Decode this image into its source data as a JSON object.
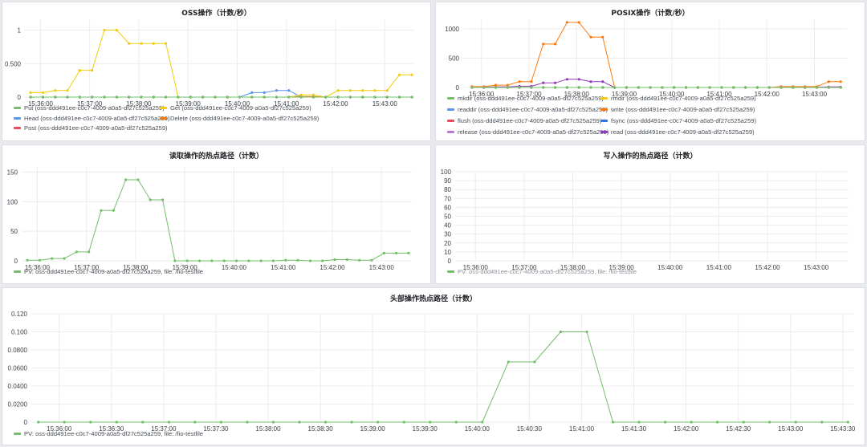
{
  "colors": {
    "green": "#73bf69",
    "yellow": "#f2cc0c",
    "blue": "#5794f2",
    "orange": "#ff780a",
    "red": "#f2495c",
    "purple": "#b877d9",
    "darkblue": "#3274d9",
    "violet": "#8f3bb8"
  },
  "panels": {
    "oss": {
      "title": "OSS操作（计数/秒）",
      "chart_data": {
        "type": "line",
        "x": [
          "15:35:48",
          "15:36:03",
          "15:36:18",
          "15:36:33",
          "15:36:48",
          "15:37:03",
          "15:37:18",
          "15:37:33",
          "15:37:48",
          "15:38:03",
          "15:38:18",
          "15:38:33",
          "15:38:48",
          "15:39:03",
          "15:39:18",
          "15:39:33",
          "15:39:48",
          "15:40:03",
          "15:40:18",
          "15:40:33",
          "15:40:48",
          "15:41:03",
          "15:41:18",
          "15:41:33",
          "15:41:48",
          "15:42:03",
          "15:42:18",
          "15:42:33",
          "15:42:48",
          "15:43:03",
          "15:43:18",
          "15:43:33"
        ],
        "xticks": [
          "15:36:00",
          "15:37:00",
          "15:38:00",
          "15:39:00",
          "15:40:00",
          "15:41:00",
          "15:42:00",
          "15:43:00"
        ],
        "yticks": [
          "0",
          "0.500",
          "1"
        ],
        "ylim": [
          0,
          1.15
        ],
        "series": [
          {
            "name": "Put (oss-ddd491ee-c0c7-4009-a0a5-df27c525a259)",
            "color": "green",
            "values": [
              0,
              0,
              0,
              0,
              0,
              0,
              0,
              0,
              0,
              0,
              0,
              0,
              0,
              0,
              0,
              0,
              0,
              0,
              0,
              0,
              0,
              0,
              0,
              0,
              0,
              0,
              0,
              0,
              0,
              0,
              0,
              0
            ]
          },
          {
            "name": "Get (oss-ddd491ee-c0c7-4009-a0a5-df27c525a259)",
            "color": "yellow",
            "values": [
              0.067,
              0.067,
              0.1,
              0.1,
              0.4,
              0.4,
              1,
              1,
              0.8,
              0.8,
              0.8,
              0.8,
              0,
              0,
              0,
              0,
              0,
              0,
              0,
              0,
              0,
              0,
              0.033,
              0.033,
              0,
              0.1,
              0.1,
              0.1,
              0.1,
              0.1,
              0.333,
              0.333
            ]
          },
          {
            "name": "Head (oss-ddd491ee-c0c7-4009-a0a5-df27c525a259)",
            "color": "blue",
            "values": [
              0,
              0,
              0,
              0,
              0,
              0,
              0,
              0,
              0,
              0,
              0,
              0,
              0,
              0,
              0,
              0,
              0,
              0,
              0.067,
              0.067,
              0.1,
              0.1,
              0,
              0,
              0,
              0,
              0,
              0,
              0,
              0,
              0,
              0
            ]
          },
          {
            "name": "Delete (oss-ddd491ee-c0c7-4009-a0a5-df27c525a259)",
            "color": "orange",
            "values": [
              0,
              0,
              0,
              0,
              0,
              0,
              0,
              0,
              0,
              0,
              0,
              0,
              0,
              0,
              0,
              0,
              0,
              0,
              0,
              0,
              0,
              0,
              0.01,
              0.01,
              0,
              0,
              0,
              0,
              0,
              0,
              0,
              0
            ]
          },
          {
            "name": "Post (oss-ddd491ee-c0c7-4009-a0a5-df27c525a259)",
            "color": "red",
            "values": [
              0,
              0,
              0,
              0,
              0,
              0,
              0,
              0,
              0,
              0,
              0,
              0,
              0,
              0,
              0,
              0,
              0,
              0,
              0,
              0,
              0,
              0,
              0,
              0,
              0,
              0,
              0,
              0,
              0,
              0,
              0,
              0
            ]
          }
        ],
        "legend": "bottom"
      }
    },
    "posix": {
      "title": "POSIX操作（计数/秒）",
      "chart_data": {
        "type": "line",
        "x": [
          "15:35:48",
          "15:36:03",
          "15:36:18",
          "15:36:33",
          "15:36:48",
          "15:37:03",
          "15:37:18",
          "15:37:33",
          "15:37:48",
          "15:38:03",
          "15:38:18",
          "15:38:33",
          "15:38:48",
          "15:39:03",
          "15:39:18",
          "15:39:33",
          "15:39:48",
          "15:40:03",
          "15:40:18",
          "15:40:33",
          "15:40:48",
          "15:41:03",
          "15:41:18",
          "15:41:33",
          "15:41:48",
          "15:42:03",
          "15:42:18",
          "15:42:33",
          "15:42:48",
          "15:43:03",
          "15:43:18",
          "15:43:33"
        ],
        "xticks": [
          "15:36:00",
          "15:37:00",
          "15:38:00",
          "15:39:00",
          "15:40:00",
          "15:41:00",
          "15:42:00",
          "15:43:00"
        ],
        "yticks": [
          "0",
          "500",
          "1000"
        ],
        "ylim": [
          0,
          1150
        ],
        "series": [
          {
            "name": "mkdir (oss-ddd491ee-c0c7-4009-a0a5-df27c525a259)",
            "color": "green",
            "values": [
              0,
              0,
              0,
              0,
              0,
              0,
              0,
              0,
              0,
              0,
              0,
              0,
              0,
              0,
              0,
              0,
              0,
              0,
              0,
              0,
              0,
              0,
              0,
              0,
              0,
              0,
              0,
              0,
              0,
              0,
              0,
              0
            ]
          },
          {
            "name": "rmdir (oss-ddd491ee-c0c7-4009-a0a5-df27c525a259)",
            "color": "yellow",
            "values": [
              0,
              0,
              0,
              0,
              0,
              0,
              0,
              0,
              0,
              0,
              0,
              0,
              0,
              0,
              0,
              0,
              0,
              0,
              0,
              0,
              0,
              0,
              0,
              0,
              0,
              0,
              0,
              0,
              0,
              0,
              0,
              0
            ]
          },
          {
            "name": "readdir (oss-ddd491ee-c0c7-4009-a0a5-df27c525a259)",
            "color": "blue",
            "values": [
              0,
              0,
              0,
              0,
              0,
              0,
              0,
              0,
              0,
              0,
              0,
              0,
              0,
              0,
              0,
              0,
              0,
              0,
              0,
              0,
              0,
              0,
              0,
              0,
              0,
              0,
              0,
              0,
              0,
              0,
              0,
              0
            ]
          },
          {
            "name": "write (oss-ddd491ee-c0c7-4009-a0a5-df27c525a259)",
            "color": "orange",
            "values": [
              15,
              15,
              40,
              40,
              100,
              100,
              740,
              740,
              1110,
              1110,
              860,
              860,
              0,
              0,
              0,
              0,
              0,
              0,
              0,
              0,
              0,
              0,
              0,
              0,
              0,
              0,
              15,
              15,
              15,
              15,
              100,
              100
            ]
          },
          {
            "name": "flush (oss-ddd491ee-c0c7-4009-a0a5-df27c525a259)",
            "color": "red",
            "values": [
              0,
              0,
              0,
              0,
              0,
              0,
              0,
              0,
              0,
              0,
              0,
              0,
              0,
              0,
              0,
              0,
              0,
              0,
              0,
              0,
              0,
              0,
              0,
              0,
              0,
              0,
              0,
              0,
              0,
              0,
              0,
              0
            ]
          },
          {
            "name": "fsync (oss-ddd491ee-c0c7-4009-a0a5-df27c525a259)",
            "color": "darkblue",
            "values": [
              0,
              0,
              0,
              0,
              0,
              0,
              0,
              0,
              0,
              0,
              0,
              0,
              0,
              0,
              0,
              0,
              0,
              0,
              0,
              0,
              0,
              0,
              0,
              0,
              0,
              0,
              0,
              0,
              0,
              0,
              0,
              0
            ]
          },
          {
            "name": "release (oss-ddd491ee-c0c7-4009-a0a5-df27c525a259)",
            "color": "purple",
            "values": [
              0,
              0,
              0,
              0,
              0,
              0,
              0,
              0,
              0,
              0,
              0,
              0,
              0,
              0,
              0,
              0,
              0,
              0,
              0,
              0,
              0,
              0,
              0,
              0,
              0,
              0,
              0,
              0,
              0,
              0,
              0,
              0
            ]
          },
          {
            "name": "read (oss-ddd491ee-c0c7-4009-a0a5-df27c525a259)",
            "color": "violet",
            "values": [
              5,
              5,
              10,
              10,
              20,
              20,
              80,
              80,
              140,
              140,
              100,
              100,
              0,
              0,
              0,
              0,
              0,
              0,
              0,
              0,
              0,
              0,
              0,
              0,
              0,
              0,
              5,
              5,
              5,
              5,
              10,
              10
            ]
          }
        ],
        "legend": "bottom"
      }
    },
    "read_hot": {
      "title": "读取操作的热点路径（计数）",
      "chart_data": {
        "type": "line",
        "x": [
          "15:35:48",
          "15:36:03",
          "15:36:18",
          "15:36:33",
          "15:36:48",
          "15:37:03",
          "15:37:18",
          "15:37:33",
          "15:37:48",
          "15:38:03",
          "15:38:18",
          "15:38:33",
          "15:38:48",
          "15:39:03",
          "15:39:18",
          "15:39:33",
          "15:39:48",
          "15:40:03",
          "15:40:18",
          "15:40:33",
          "15:40:48",
          "15:41:03",
          "15:41:18",
          "15:41:33",
          "15:41:48",
          "15:42:03",
          "15:42:18",
          "15:42:33",
          "15:42:48",
          "15:43:03",
          "15:43:18",
          "15:43:33"
        ],
        "xticks": [
          "15:36:00",
          "15:37:00",
          "15:38:00",
          "15:39:00",
          "15:40:00",
          "15:41:00",
          "15:42:00",
          "15:43:00"
        ],
        "yticks": [
          "0",
          "50",
          "100",
          "150"
        ],
        "ylim": [
          0,
          160
        ],
        "series": [
          {
            "name": "PV: oss-ddd491ee-c0c7-4009-a0a5-df27c525a259, file: /fio-testfile",
            "color": "green",
            "values": [
              1,
              1,
              4,
              4,
              15,
              15,
              85,
              85,
              137,
              137,
              103,
              103,
              0,
              0,
              0,
              0,
              0,
              0,
              0,
              0,
              0,
              1,
              1,
              0,
              0,
              2,
              2,
              1,
              1,
              13,
              13,
              13
            ]
          }
        ],
        "legend": "bottom"
      }
    },
    "write_hot": {
      "title": "写入操作的热点路径（计数）",
      "chart_data": {
        "type": "line",
        "x": [],
        "xticks": [
          "15:36:00",
          "15:37:00",
          "15:38:00",
          "15:39:00",
          "15:40:00",
          "15:41:00",
          "15:42:00",
          "15:43:00"
        ],
        "yticks": [
          "0",
          "10",
          "20",
          "30",
          "40",
          "50",
          "60",
          "70",
          "80",
          "90",
          "100"
        ],
        "ylim": [
          0,
          100
        ],
        "series": [
          {
            "name": "PV: oss-ddd491ee-c0c7-4009-a0a5-df27c525a259, file: /fio-testfile",
            "color": "green",
            "values": []
          }
        ],
        "legend": "bottom"
      }
    },
    "head_hot": {
      "title": "头部操作热点路径（计数）",
      "chart_data": {
        "type": "line",
        "x": [
          "15:35:48",
          "15:36:03",
          "15:36:18",
          "15:36:33",
          "15:36:48",
          "15:37:03",
          "15:37:18",
          "15:37:33",
          "15:37:48",
          "15:38:03",
          "15:38:18",
          "15:38:33",
          "15:38:48",
          "15:39:03",
          "15:39:18",
          "15:39:33",
          "15:39:48",
          "15:40:03",
          "15:40:18",
          "15:40:33",
          "15:40:48",
          "15:41:03",
          "15:41:18",
          "15:41:33",
          "15:41:48",
          "15:42:03",
          "15:42:18",
          "15:42:33",
          "15:42:48",
          "15:43:03",
          "15:43:18",
          "15:43:33"
        ],
        "xticks": [
          "15:36:00",
          "15:36:30",
          "15:37:00",
          "15:37:30",
          "15:38:00",
          "15:38:30",
          "15:39:00",
          "15:39:30",
          "15:40:00",
          "15:40:30",
          "15:41:00",
          "15:41:30",
          "15:42:00",
          "15:42:30",
          "15:43:00",
          "15:43:30"
        ],
        "yticks": [
          "0",
          "0.0200",
          "0.0400",
          "0.0600",
          "0.0800",
          "0.100",
          "0.120"
        ],
        "ylim": [
          0,
          0.12
        ],
        "series": [
          {
            "name": "PV: oss-ddd491ee-c0c7-4009-a0a5-df27c525a259, file: /fio-testfile",
            "color": "green",
            "values": [
              0,
              0,
              0,
              0,
              0,
              0,
              0,
              0,
              0,
              0,
              0,
              0,
              0,
              0,
              0,
              0,
              0,
              0,
              0.0667,
              0.0667,
              0.1,
              0.1,
              0,
              0,
              0,
              0,
              0,
              0,
              0,
              0,
              0,
              0
            ]
          }
        ],
        "legend": "bottom"
      }
    }
  }
}
